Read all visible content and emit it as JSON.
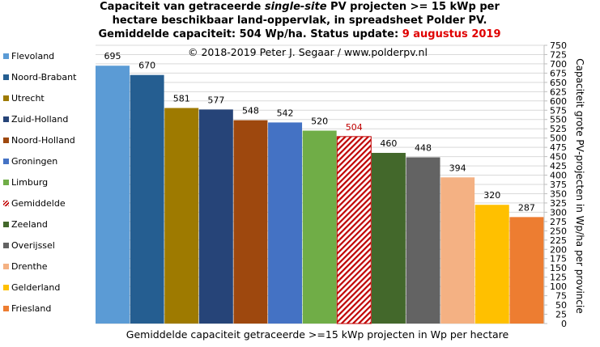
{
  "chart_data": {
    "type": "bar",
    "title": {
      "line1_a": "Capaciteit van getraceerde ",
      "line1_b": "single-site",
      "line1_c": " PV projecten >= 15 kWp per",
      "line2": "hectare beschikbaar land-oppervlak, in spreadsheet Polder PV.",
      "line3": "Gemiddelde capaciteit: 504 Wp/ha. Status update: ",
      "date": "9 augustus 2019"
    },
    "copyright": "© 2018-2019  Peter J. Segaar / www.polderpv.nl",
    "xlabel": "Gemiddelde capaciteit getraceerde >=15 kWp projecten in Wp per hectare",
    "ylabel": "Capaciteit grote PV-projecten in Wp/ha per provincie",
    "ylim": [
      0,
      750
    ],
    "yticks": [
      "0",
      "25",
      "50",
      "75",
      "100",
      "125",
      "150",
      "175",
      "200",
      "225",
      "250",
      "275",
      "300",
      "325",
      "350",
      "375",
      "400",
      "425",
      "450",
      "475",
      "500",
      "525",
      "550",
      "575",
      "600",
      "625",
      "650",
      "675",
      "700",
      "725",
      "750"
    ],
    "grid": true,
    "legend_position": "left",
    "series": [
      {
        "name": "Flevoland",
        "value": 695,
        "label": "695",
        "color": "#5b9bd5"
      },
      {
        "name": "Noord-Brabant",
        "value": 670,
        "label": "670",
        "color": "#255e91"
      },
      {
        "name": "Utrecht",
        "value": 581,
        "label": "581",
        "color": "#9e7a00"
      },
      {
        "name": "Zuid-Holland",
        "value": 577,
        "label": "577",
        "color": "#264478"
      },
      {
        "name": "Noord-Holland",
        "value": 548,
        "label": "548",
        "color": "#9e480e"
      },
      {
        "name": "Groningen",
        "value": 542,
        "label": "542",
        "color": "#4472c4"
      },
      {
        "name": "Limburg",
        "value": 520,
        "label": "520",
        "color": "#70ad47"
      },
      {
        "name": "Gemiddelde",
        "value": 504,
        "label": "504",
        "color": "#c00000",
        "hatched": true
      },
      {
        "name": "Zeeland",
        "value": 460,
        "label": "460",
        "color": "#43682b"
      },
      {
        "name": "Overijssel",
        "value": 448,
        "label": "448",
        "color": "#636363"
      },
      {
        "name": "Drenthe",
        "value": 394,
        "label": "394",
        "color": "#f4b183"
      },
      {
        "name": "Gelderland",
        "value": 320,
        "label": "320",
        "color": "#ffc000"
      },
      {
        "name": "Friesland",
        "value": 287,
        "label": "287",
        "color": "#ed7d31"
      }
    ]
  }
}
